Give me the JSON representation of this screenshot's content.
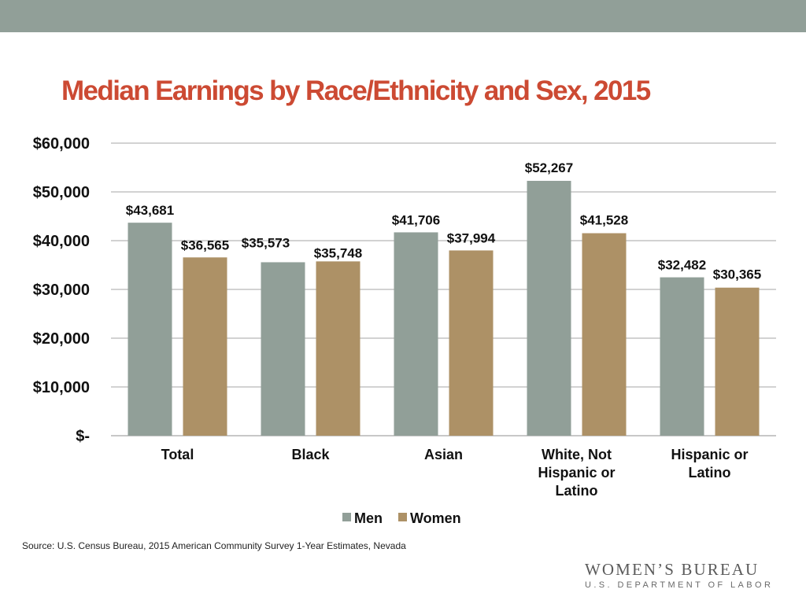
{
  "slide": {
    "title": "Median Earnings by Race/Ethnicity and Sex, 2015",
    "source": "Source: U.S. Census Bureau, 2015 American Community Survey 1-Year Estimates, Nevada",
    "logo": {
      "main": "WOMEN’S BUREAU",
      "sub": "U.S. DEPARTMENT OF LABOR"
    },
    "colors": {
      "top_bar": "#919f98",
      "title": "#cc4a33",
      "men": "#919f98",
      "women": "#ad9166"
    }
  },
  "chart_data": {
    "type": "bar",
    "title": "Median Earnings by Race/Ethnicity and Sex, 2015",
    "categories": [
      [
        "Total"
      ],
      [
        "Black"
      ],
      [
        "Asian"
      ],
      [
        "White, Not",
        "Hispanic or",
        "Latino"
      ],
      [
        "Hispanic or",
        "Latino"
      ]
    ],
    "series": [
      {
        "name": "Men",
        "color": "#919f98",
        "values": [
          43681,
          35573,
          41706,
          52267,
          32482
        ],
        "labels": [
          "$43,681",
          "$35,573",
          "$41,706",
          "$52,267",
          "$32,482"
        ]
      },
      {
        "name": "Women",
        "color": "#ad9166",
        "values": [
          36565,
          35748,
          37994,
          41528,
          30365
        ],
        "labels": [
          "$36,565",
          "$35,748",
          "$37,994",
          "$41,528",
          "$30,365"
        ]
      }
    ],
    "y_ticks": [
      {
        "value": 0,
        "label": "$-"
      },
      {
        "value": 10000,
        "label": "$10,000"
      },
      {
        "value": 20000,
        "label": "$20,000"
      },
      {
        "value": 30000,
        "label": "$30,000"
      },
      {
        "value": 40000,
        "label": "$40,000"
      },
      {
        "value": 50000,
        "label": "$50,000"
      },
      {
        "value": 60000,
        "label": "$60,000"
      }
    ],
    "ylim": [
      0,
      60000
    ],
    "grid": true,
    "legend": "bottom",
    "xlabel": "",
    "ylabel": ""
  }
}
